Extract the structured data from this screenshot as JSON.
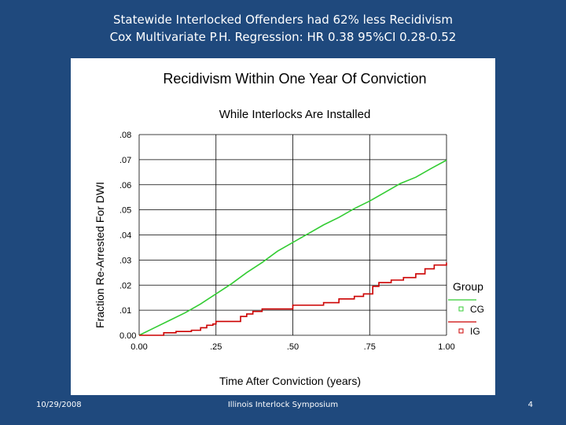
{
  "slide": {
    "title_line1": "Statewide Interlocked Offenders had 62% less Recidivism",
    "title_line2": "Cox Multivariate P.H. Regression:  HR 0.38  95%CI 0.28-0.52"
  },
  "footer": {
    "date": "10/29/2008",
    "center": "Illinois Interlock Symposium",
    "page": "4"
  },
  "chart_data": {
    "type": "line",
    "title": "Recidivism Within One Year Of Conviction",
    "subtitle": "While Interlocks Are Installed",
    "xlabel": "Time After Conviction (years)",
    "ylabel": "Fraction Re-Arrested For DWI",
    "xlim": [
      0,
      1
    ],
    "ylim": [
      0,
      0.08
    ],
    "x_ticks": [
      {
        "v": 0,
        "label": "0.00"
      },
      {
        "v": 0.25,
        "label": ".25"
      },
      {
        "v": 0.5,
        "label": ".50"
      },
      {
        "v": 0.75,
        "label": ".75"
      },
      {
        "v": 1,
        "label": "1.00"
      }
    ],
    "y_ticks": [
      {
        "v": 0,
        "label": "0.00"
      },
      {
        "v": 0.01,
        "label": ".01"
      },
      {
        "v": 0.02,
        "label": ".02"
      },
      {
        "v": 0.03,
        "label": ".03"
      },
      {
        "v": 0.04,
        "label": ".04"
      },
      {
        "v": 0.05,
        "label": ".05"
      },
      {
        "v": 0.06,
        "label": ".06"
      },
      {
        "v": 0.07,
        "label": ".07"
      },
      {
        "v": 0.08,
        "label": ".08"
      }
    ],
    "grid": true,
    "legend": {
      "title": "Group",
      "position": "right"
    },
    "series": [
      {
        "name": "CG",
        "color": "#33cc33",
        "style": "smooth",
        "points": [
          [
            0,
            0
          ],
          [
            0.05,
            0.003
          ],
          [
            0.1,
            0.006
          ],
          [
            0.15,
            0.009
          ],
          [
            0.2,
            0.0125
          ],
          [
            0.25,
            0.0165
          ],
          [
            0.3,
            0.0205
          ],
          [
            0.35,
            0.025
          ],
          [
            0.4,
            0.029
          ],
          [
            0.45,
            0.0335
          ],
          [
            0.5,
            0.037
          ],
          [
            0.55,
            0.0405
          ],
          [
            0.6,
            0.044
          ],
          [
            0.65,
            0.047
          ],
          [
            0.7,
            0.0505
          ],
          [
            0.75,
            0.0535
          ],
          [
            0.8,
            0.057
          ],
          [
            0.85,
            0.0605
          ],
          [
            0.9,
            0.063
          ],
          [
            0.95,
            0.0665
          ],
          [
            1,
            0.0698
          ]
        ]
      },
      {
        "name": "IG",
        "color": "#cc0000",
        "style": "step",
        "points": [
          [
            0,
            0
          ],
          [
            0.08,
            0.001
          ],
          [
            0.12,
            0.0015
          ],
          [
            0.17,
            0.002
          ],
          [
            0.2,
            0.003
          ],
          [
            0.22,
            0.004
          ],
          [
            0.24,
            0.0045
          ],
          [
            0.25,
            0.0055
          ],
          [
            0.3,
            0.0055
          ],
          [
            0.33,
            0.0075
          ],
          [
            0.35,
            0.0085
          ],
          [
            0.37,
            0.0095
          ],
          [
            0.4,
            0.0105
          ],
          [
            0.45,
            0.0105
          ],
          [
            0.5,
            0.012
          ],
          [
            0.6,
            0.013
          ],
          [
            0.65,
            0.0145
          ],
          [
            0.7,
            0.0155
          ],
          [
            0.73,
            0.0165
          ],
          [
            0.76,
            0.0195
          ],
          [
            0.78,
            0.021
          ],
          [
            0.82,
            0.022
          ],
          [
            0.86,
            0.023
          ],
          [
            0.9,
            0.0245
          ],
          [
            0.93,
            0.0265
          ],
          [
            0.96,
            0.028
          ],
          [
            1,
            0.029
          ]
        ]
      }
    ]
  }
}
